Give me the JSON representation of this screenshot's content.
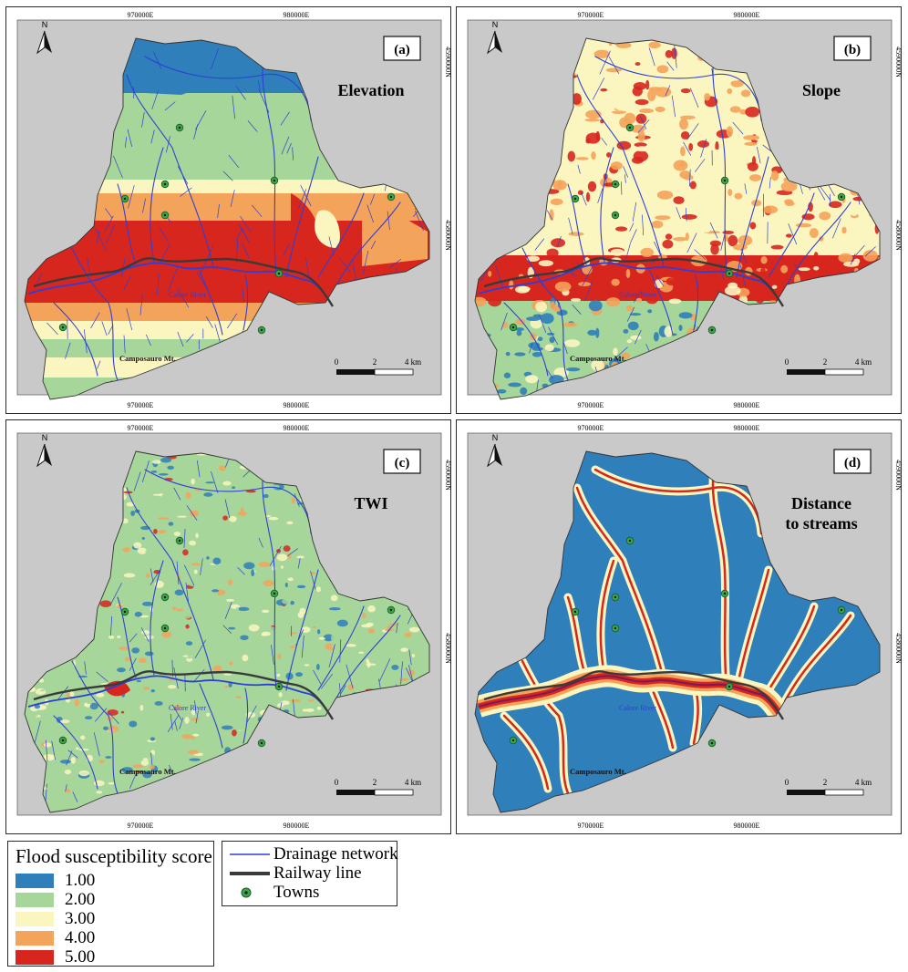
{
  "panels": [
    {
      "letter": "(a)",
      "title_lines": [
        "Elevation"
      ],
      "map_style": "elevation"
    },
    {
      "letter": "(b)",
      "title_lines": [
        "Slope"
      ],
      "map_style": "slope"
    },
    {
      "letter": "(c)",
      "title_lines": [
        "TWI"
      ],
      "map_style": "twi"
    },
    {
      "letter": "(d)",
      "title_lines": [
        "Distance",
        "to streams"
      ],
      "map_style": "distance"
    }
  ],
  "map_labels": {
    "river": "Calore River",
    "mountain": "Camposauro Mt.",
    "north": "N",
    "x_ticks": [
      "970000E",
      "980000E"
    ],
    "y_ticks": [
      "4590000N",
      "4580000N"
    ],
    "scale_labels": [
      "0",
      "2",
      "4 km"
    ]
  },
  "legend_scores": {
    "title": "Flood susceptibility score",
    "items": [
      {
        "label": "1.00",
        "color": "#2f7fba"
      },
      {
        "label": "2.00",
        "color": "#a6d69a"
      },
      {
        "label": "3.00",
        "color": "#fbf6c0"
      },
      {
        "label": "4.00",
        "color": "#f4a35a"
      },
      {
        "label": "5.00",
        "color": "#d7261e"
      }
    ]
  },
  "legend_features": {
    "items": [
      {
        "label": "Drainage network",
        "symbol": "blue-line",
        "color": "#2f3fd6"
      },
      {
        "label": "Railway line",
        "symbol": "dark-gray-line",
        "color": "#3a3a3a"
      },
      {
        "label": "Towns",
        "symbol": "green-dot-circle",
        "color": "#3aa64a"
      }
    ]
  }
}
